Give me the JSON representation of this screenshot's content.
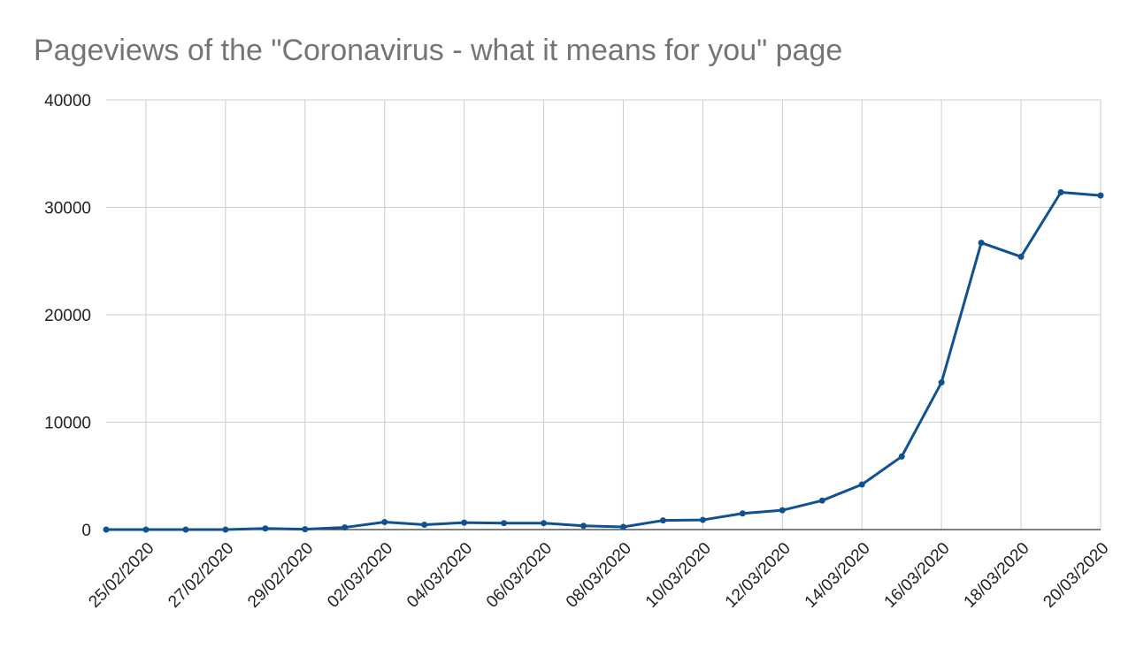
{
  "chart_data": {
    "type": "line",
    "title": "Pageviews of the \"Coronavirus - what it means for you\" page",
    "categories": [
      null,
      "25/02/2020",
      null,
      "27/02/2020",
      null,
      "29/02/2020",
      null,
      "02/03/2020",
      null,
      "04/03/2020",
      null,
      "06/03/2020",
      null,
      "08/03/2020",
      null,
      "10/03/2020",
      null,
      "12/03/2020",
      null,
      "14/03/2020",
      null,
      "16/03/2020",
      null,
      "18/03/2020",
      null,
      "20/03/2020"
    ],
    "series": [
      {
        "name": "Pageviews",
        "color": "#10518f",
        "values": [
          0,
          0,
          0,
          0,
          100,
          30,
          200,
          700,
          450,
          650,
          600,
          600,
          350,
          250,
          850,
          900,
          1500,
          1800,
          2700,
          4200,
          6800,
          13700,
          26700,
          25400,
          31400,
          31100
        ]
      }
    ],
    "ylim": [
      0,
      40000
    ],
    "yticks": [
      0,
      10000,
      20000,
      30000,
      40000
    ],
    "grid": true
  }
}
